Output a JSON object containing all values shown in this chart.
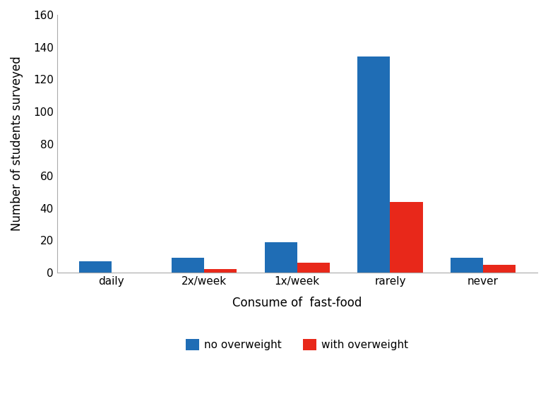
{
  "categories": [
    "daily",
    "2x/week",
    "1x/week",
    "rarely",
    "never"
  ],
  "no_overweight": [
    7,
    9,
    19,
    134,
    9
  ],
  "with_overweight": [
    0,
    2,
    6,
    44,
    5
  ],
  "bar_color_no": "#1F6DB5",
  "bar_color_with": "#E8281A",
  "title": "",
  "xlabel": "Consume of  fast-food",
  "ylabel": "Number of students surveyed",
  "ylim": [
    0,
    160
  ],
  "yticks": [
    0,
    20,
    40,
    60,
    80,
    100,
    120,
    140,
    160
  ],
  "legend_labels": [
    "no overweight",
    "with overweight"
  ],
  "legend_loc": "lower center",
  "bar_width": 0.35,
  "background_color": "#ffffff",
  "border_color": "#aaaaaa"
}
